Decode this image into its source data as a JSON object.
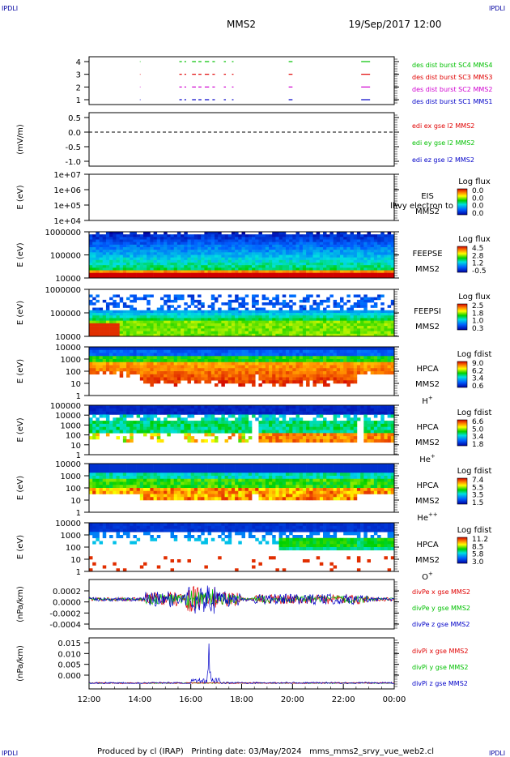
{
  "corner_mark": "IPDLI",
  "header": {
    "spacecraft": "MMS2",
    "datetime": "19/Sep/2017 12:00"
  },
  "footer": "Produced by cl (IRAP)   Printing date: 03/May/2024   mms_mms2_srvy_vue_web2.cl",
  "colors": {
    "red": "#e00000",
    "green": "#00c000",
    "blue": "#0000c8",
    "magenta": "#d000d0",
    "dash": "#000000"
  },
  "chart_data": [
    {
      "id": "burst",
      "type": "line",
      "ylim": [
        0.5,
        4.5
      ],
      "ytick_labels": [
        "4",
        "3",
        "2",
        "1"
      ],
      "series": [
        {
          "name": "des dist burst SC1 MMS1",
          "color": "#0000c8",
          "level": 1
        },
        {
          "name": "des dist burst SC2 MMS2",
          "color": "#d000d0",
          "level": 2
        },
        {
          "name": "des dist burst SC3 MMS3",
          "color": "#e00000",
          "level": 3
        },
        {
          "name": "des dist burst SC4 MMS4",
          "color": "#00c000",
          "level": 4
        }
      ],
      "intervals": [
        [
          15.55,
          15.65
        ],
        [
          15.75,
          15.82
        ],
        [
          16.05,
          16.2
        ],
        [
          16.3,
          16.42
        ],
        [
          16.55,
          16.72
        ],
        [
          16.85,
          16.95
        ],
        [
          17.3,
          17.38
        ],
        [
          17.62,
          17.68
        ],
        [
          19.85,
          20.0
        ],
        [
          22.7,
          23.05
        ]
      ]
    },
    {
      "id": "edi",
      "type": "line",
      "ylabel": "(mV/m)",
      "ylim": [
        -1.0,
        0.6
      ],
      "ytick_labels": [
        "0.5",
        "0.0",
        "-0.5",
        "-1.0"
      ],
      "series": [
        {
          "name": "edi ex gse l2 MMS2",
          "color": "#e00000"
        },
        {
          "name": "edi ey gse l2 MMS2",
          "color": "#00c000"
        },
        {
          "name": "edi ez gse l2 MMS2",
          "color": "#0000c8"
        }
      ],
      "zero_line": 0.0
    },
    {
      "id": "eis",
      "type": "heatmap",
      "ylabel": "E (eV)",
      "ytick_labels": [
        "1e+07",
        "1e+06",
        "1e+05",
        "1e+04"
      ],
      "labels": [
        "EIS",
        "MMS2"
      ],
      "overlay_text": "ll\\vy electron to",
      "colorbar": {
        "title": "Log flux",
        "ticks": [
          "0.0",
          "0.0",
          "0.0",
          "0.0"
        ]
      }
    },
    {
      "id": "feepse",
      "type": "heatmap",
      "ylabel": "E (eV)",
      "ytick_labels": [
        "1000000",
        "100000",
        "10000"
      ],
      "labels": [
        "FEEPSE",
        "MMS2"
      ],
      "colorbar": {
        "title": "Log flux",
        "ticks": [
          "4.5",
          "2.8",
          "1.2",
          "-0.5"
        ]
      }
    },
    {
      "id": "feepsi",
      "type": "heatmap",
      "ylabel": "E (eV)",
      "ytick_labels": [
        "1000000",
        "100000",
        "10000"
      ],
      "labels": [
        "FEEPSI",
        "MMS2"
      ],
      "colorbar": {
        "title": "Log flux",
        "ticks": [
          "2.5",
          "1.8",
          "1.0",
          "0.3"
        ]
      }
    },
    {
      "id": "hpca_h",
      "type": "heatmap",
      "ylabel": "E (eV)",
      "ytick_labels": [
        "10000",
        "1000",
        "100",
        "10",
        "1"
      ],
      "labels": [
        "HPCA",
        "MMS2"
      ],
      "species": "H",
      "charge": "+",
      "colorbar": {
        "title": "Log fdist",
        "ticks": [
          "9.0",
          "6.2",
          "3.4",
          "0.6"
        ]
      }
    },
    {
      "id": "hpca_he",
      "type": "heatmap",
      "ylabel": "E (eV)",
      "ytick_labels": [
        "100000",
        "10000",
        "1000",
        "100",
        "10",
        "1"
      ],
      "labels": [
        "HPCA",
        "MMS2"
      ],
      "species": "He",
      "charge": "+",
      "colorbar": {
        "title": "Log fdist",
        "ticks": [
          "6.6",
          "5.0",
          "3.4",
          "1.8"
        ]
      }
    },
    {
      "id": "hpca_hepp",
      "type": "heatmap",
      "ylabel": "E (eV)",
      "ytick_labels": [
        "10000",
        "1000",
        "100",
        "10",
        "1"
      ],
      "labels": [
        "HPCA",
        "MMS2"
      ],
      "species": "He",
      "charge": "++",
      "colorbar": {
        "title": "Log fdist",
        "ticks": [
          "7.4",
          "5.5",
          "3.5",
          "1.5"
        ]
      }
    },
    {
      "id": "hpca_o",
      "type": "heatmap",
      "ylabel": "E (eV)",
      "ytick_labels": [
        "10000",
        "1000",
        "100",
        "10",
        "1"
      ],
      "labels": [
        "HPCA",
        "MMS2"
      ],
      "species": "O",
      "charge": "+",
      "colorbar": {
        "title": "Log fdist",
        "ticks": [
          "11.2",
          "8.5",
          "5.8",
          "3.0"
        ]
      }
    },
    {
      "id": "divpe",
      "type": "line",
      "ylabel": "(nPa/km)",
      "ylim": [
        -0.00045,
        0.0003
      ],
      "ytick_labels": [
        "0.0002",
        "0.0000",
        "-0.0002",
        "-0.0004"
      ],
      "series": [
        {
          "name": "divPe x gse MMS2",
          "color": "#e00000"
        },
        {
          "name": "divPe y gse MMS2",
          "color": "#00c000"
        },
        {
          "name": "divPe z gse MMS2",
          "color": "#0000c8"
        }
      ]
    },
    {
      "id": "divpi",
      "type": "line",
      "ylabel": "(nPa/km)",
      "ylim": [
        -0.002,
        0.016
      ],
      "ytick_labels": [
        "0.015",
        "0.010",
        "0.005",
        "0.000"
      ],
      "series": [
        {
          "name": "divPi x gse MMS2",
          "color": "#e00000"
        },
        {
          "name": "divPi y gse MMS2",
          "color": "#00c000"
        },
        {
          "name": "divPi z gse MMS2",
          "color": "#0000c8"
        }
      ],
      "peak": {
        "x": 16.72,
        "y": 0.014
      }
    }
  ],
  "x_axis": {
    "range_hours": [
      12,
      24
    ],
    "tick_labels": [
      "12:00",
      "14:00",
      "16:00",
      "18:00",
      "20:00",
      "22:00",
      "00:00"
    ]
  }
}
